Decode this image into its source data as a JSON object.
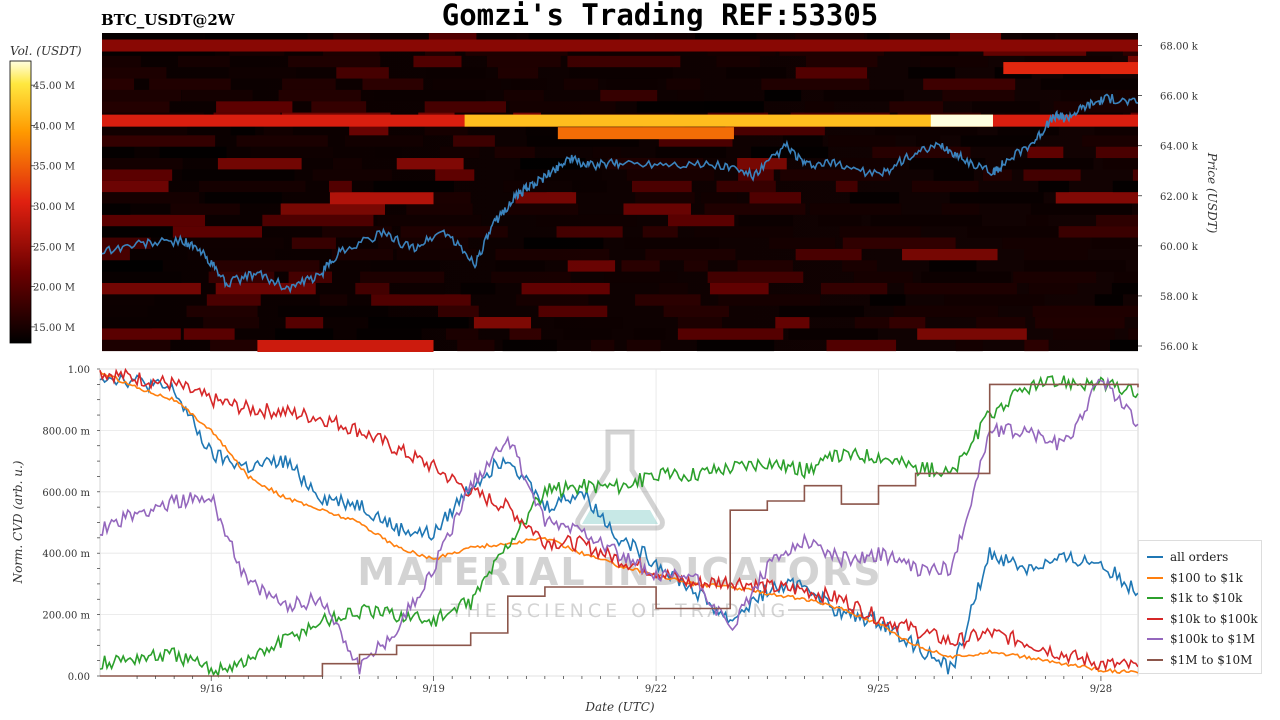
{
  "header": {
    "title": "Gomzi's Trading REF:53305",
    "symbol": "BTC_USDT@2W"
  },
  "colorbar": {
    "label": "Vol. (USDT)",
    "ticks": [
      "45.00 M",
      "40.00 M",
      "35.00 M",
      "30.00 M",
      "25.00 M",
      "20.00 M",
      "15.00 M"
    ]
  },
  "watermark": {
    "brand": "MATERIAL INDICATORS",
    "tagline": "THE SCIENCE OF TRADING"
  },
  "chart_data": [
    {
      "type": "heatmap",
      "title": "BTC_USDT@2W",
      "ylabel": "Price (USDT)",
      "ylim": [
        55800,
        68500
      ],
      "y_ticks": [
        "68.00 k",
        "66.00 k",
        "64.00 k",
        "62.00 k",
        "60.00 k",
        "58.00 k",
        "56.00 k"
      ],
      "y_tick_values": [
        68000,
        66000,
        64000,
        62000,
        60000,
        58000,
        56000
      ],
      "colorbar_range": [
        13000,
        48000
      ],
      "price_series": {
        "name": "price",
        "color": "#3b83bd",
        "x": [
          0,
          0.04,
          0.08,
          0.1,
          0.12,
          0.15,
          0.18,
          0.21,
          0.23,
          0.27,
          0.3,
          0.33,
          0.36,
          0.38,
          0.4,
          0.41,
          0.43,
          0.45,
          0.47,
          0.5,
          0.55,
          0.6,
          0.63,
          0.66,
          0.68,
          0.71,
          0.75,
          0.78,
          0.81,
          0.83,
          0.86,
          0.87,
          0.9,
          0.92,
          0.93,
          0.95,
          0.97,
          1.0
        ],
        "y": [
          59800,
          60100,
          60200,
          59600,
          58500,
          58900,
          58300,
          58800,
          59800,
          60500,
          59900,
          60600,
          59300,
          61000,
          62000,
          62300,
          62800,
          63500,
          63200,
          63300,
          63300,
          63200,
          62800,
          64000,
          63200,
          63300,
          62800,
          63600,
          64000,
          63500,
          62900,
          63300,
          64200,
          65200,
          65100,
          65600,
          65900,
          65700
        ]
      },
      "bands": [
        {
          "price": 65000,
          "from": 0.0,
          "to": 1.0,
          "volume": 30000
        },
        {
          "price": 65000,
          "from": 0.35,
          "to": 0.86,
          "volume": 42000
        },
        {
          "price": 65000,
          "from": 0.8,
          "to": 0.86,
          "volume": 48000
        },
        {
          "price": 64500,
          "from": 0.44,
          "to": 0.61,
          "volume": 36000
        },
        {
          "price": 68000,
          "from": 0.0,
          "to": 1.0,
          "volume": 24000
        },
        {
          "price": 61900,
          "from": 0.22,
          "to": 0.32,
          "volume": 27000
        },
        {
          "price": 56000,
          "from": 0.15,
          "to": 0.32,
          "volume": 29000
        },
        {
          "price": 67100,
          "from": 0.87,
          "to": 1.0,
          "volume": 31000
        }
      ]
    },
    {
      "type": "line",
      "title": "",
      "xlabel": "Date (UTC)",
      "ylabel": "Norm. CVD (arb. u.)",
      "ylim": [
        0,
        1
      ],
      "x_ticks": [
        "9/16",
        "9/19",
        "9/22",
        "9/25",
        "9/28"
      ],
      "x_tick_days": [
        16,
        19,
        22,
        25,
        28
      ],
      "xlim_days": [
        14.5,
        28.5
      ],
      "y_ticks": [
        "1.00",
        "800.00 m",
        "600.00 m",
        "400.00 m",
        "200.00 m",
        "0.00"
      ],
      "y_tick_values": [
        1,
        0.8,
        0.6,
        0.4,
        0.2,
        0
      ],
      "x": [
        14.5,
        15,
        15.5,
        16,
        16.5,
        17,
        17.5,
        18,
        18.5,
        19,
        19.5,
        20,
        20.5,
        21,
        21.5,
        22,
        22.5,
        23,
        23.5,
        24,
        24.5,
        25,
        25.5,
        26,
        26.5,
        27,
        27.5,
        28,
        28.5
      ],
      "series": [
        {
          "name": "all orders",
          "color": "#1f77b4",
          "values": [
            0.98,
            0.96,
            0.93,
            0.72,
            0.68,
            0.7,
            0.58,
            0.56,
            0.48,
            0.46,
            0.62,
            0.72,
            0.55,
            0.6,
            0.45,
            0.37,
            0.28,
            0.18,
            0.28,
            0.3,
            0.2,
            0.18,
            0.1,
            0.02,
            0.4,
            0.35,
            0.38,
            0.37,
            0.27
          ]
        },
        {
          "name": "$100 to $1k",
          "color": "#ff7f0e",
          "values": [
            0.99,
            0.94,
            0.9,
            0.8,
            0.65,
            0.58,
            0.54,
            0.5,
            0.42,
            0.38,
            0.42,
            0.43,
            0.45,
            0.4,
            0.36,
            0.33,
            0.3,
            0.29,
            0.27,
            0.25,
            0.22,
            0.17,
            0.1,
            0.06,
            0.08,
            0.06,
            0.04,
            0.02,
            0.01
          ]
        },
        {
          "name": "$1k to $10k",
          "color": "#2ca02c",
          "values": [
            0.04,
            0.06,
            0.07,
            0.02,
            0.05,
            0.12,
            0.18,
            0.21,
            0.2,
            0.18,
            0.24,
            0.43,
            0.6,
            0.62,
            0.62,
            0.65,
            0.66,
            0.68,
            0.7,
            0.67,
            0.72,
            0.72,
            0.68,
            0.66,
            0.85,
            0.94,
            0.96,
            0.95,
            0.92
          ]
        },
        {
          "name": "$10k to $100k",
          "color": "#d62728",
          "values": [
            0.99,
            0.97,
            0.95,
            0.9,
            0.87,
            0.86,
            0.84,
            0.8,
            0.74,
            0.68,
            0.6,
            0.55,
            0.44,
            0.43,
            0.38,
            0.34,
            0.3,
            0.31,
            0.29,
            0.28,
            0.25,
            0.19,
            0.15,
            0.11,
            0.14,
            0.11,
            0.07,
            0.04,
            0.03
          ]
        },
        {
          "name": "$100k to $1M",
          "color": "#9467bd",
          "values": [
            0.48,
            0.53,
            0.57,
            0.58,
            0.3,
            0.23,
            0.25,
            0.03,
            0.15,
            0.35,
            0.62,
            0.78,
            0.5,
            0.48,
            0.4,
            0.32,
            0.33,
            0.15,
            0.35,
            0.45,
            0.38,
            0.4,
            0.35,
            0.35,
            0.8,
            0.8,
            0.75,
            0.97,
            0.82
          ]
        },
        {
          "name": "$1M to $10M",
          "color": "#8c564b",
          "values": [
            0.0,
            0.0,
            0.0,
            0.0,
            0.0,
            0.0,
            0.04,
            0.07,
            0.1,
            0.1,
            0.14,
            0.26,
            0.29,
            0.29,
            0.29,
            0.22,
            0.22,
            0.54,
            0.57,
            0.62,
            0.56,
            0.62,
            0.66,
            0.66,
            0.95,
            0.95,
            0.95,
            0.95,
            0.94
          ]
        }
      ]
    }
  ]
}
